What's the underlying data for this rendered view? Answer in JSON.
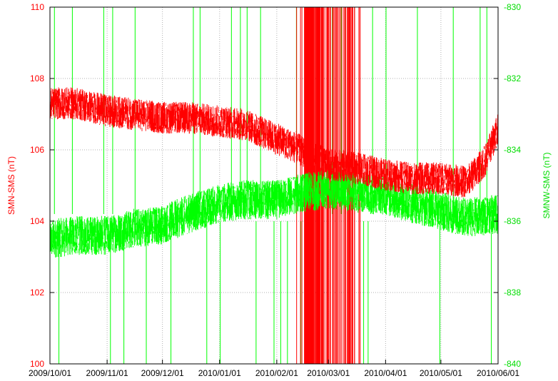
{
  "chart_data": {
    "type": "line",
    "title": "",
    "xlabel": "",
    "x_ticks": [
      "2009/10/01",
      "2009/11/01",
      "2009/12/01",
      "2010/01/01",
      "2010/02/01",
      "2010/03/01",
      "2010/04/01",
      "2010/05/01",
      "2010/06/01"
    ],
    "xlim": [
      "2009/10/01",
      "2010/06/01"
    ],
    "grid": true,
    "y_left": {
      "label": "SMN-SMS (nT)",
      "ylim": [
        100,
        110
      ],
      "ticks": [
        100,
        102,
        104,
        106,
        108,
        110
      ],
      "color": "#ff0000"
    },
    "y_right": {
      "label": "SMNW-SMS (nT)",
      "ylim": [
        -840,
        -830
      ],
      "ticks": [
        -840,
        -838,
        -836,
        -834,
        -832,
        -830
      ],
      "color": "#00ff00"
    },
    "series": [
      {
        "axis": "left",
        "color": "#ff0000",
        "x": [
          "2009/10/01",
          "2009/10/15",
          "2009/11/01",
          "2009/11/15",
          "2009/12/01",
          "2009/12/15",
          "2010/01/01",
          "2010/01/15",
          "2010/02/01",
          "2010/02/10",
          "2010/02/20",
          "2010/03/01",
          "2010/03/15",
          "2010/04/01",
          "2010/04/15",
          "2010/05/01",
          "2010/05/15",
          "2010/05/25",
          "2010/06/01"
        ],
        "values": [
          107.3,
          107.3,
          107.1,
          107.0,
          106.9,
          106.9,
          106.8,
          106.7,
          106.3,
          106.1,
          105.8,
          105.6,
          105.5,
          105.3,
          105.2,
          105.2,
          105.1,
          105.7,
          106.6
        ]
      },
      {
        "axis": "right",
        "color": "#00ff00",
        "x": [
          "2009/10/01",
          "2009/10/15",
          "2009/11/01",
          "2009/11/15",
          "2009/12/01",
          "2009/12/15",
          "2010/01/01",
          "2010/01/15",
          "2010/02/01",
          "2010/02/15",
          "2010/03/01",
          "2010/03/15",
          "2010/04/01",
          "2010/04/15",
          "2010/05/01",
          "2010/05/15",
          "2010/06/01"
        ],
        "values": [
          -836.5,
          -836.4,
          -836.4,
          -836.2,
          -836.1,
          -835.8,
          -835.5,
          -835.4,
          -835.4,
          -835.2,
          -835.1,
          -835.2,
          -835.3,
          -835.5,
          -835.7,
          -835.9,
          -835.8
        ]
      }
    ]
  }
}
